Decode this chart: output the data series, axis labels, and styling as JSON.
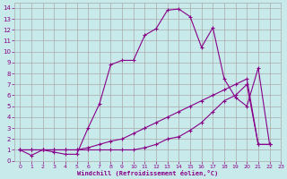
{
  "background_color": "#c8eaea",
  "grid_color": "#aaaaaa",
  "line_color": "#880088",
  "xlabel": "Windchill (Refroidissement éolien,°C)",
  "xlim": [
    -0.5,
    23
  ],
  "ylim": [
    0,
    14.5
  ],
  "xticks": [
    0,
    1,
    2,
    3,
    4,
    5,
    6,
    7,
    8,
    9,
    10,
    11,
    12,
    13,
    14,
    15,
    16,
    17,
    18,
    19,
    20,
    21,
    22,
    23
  ],
  "yticks": [
    0,
    1,
    2,
    3,
    4,
    5,
    6,
    7,
    8,
    9,
    10,
    11,
    12,
    13,
    14
  ],
  "curve1_x": [
    0,
    1,
    2,
    3,
    4,
    5,
    6,
    7,
    8,
    9,
    10,
    11,
    12,
    13,
    14,
    15,
    16,
    17,
    18,
    19,
    20,
    21,
    22
  ],
  "curve1_y": [
    1,
    0.5,
    1,
    0.8,
    0.6,
    0.6,
    3.0,
    5.2,
    8.8,
    9.2,
    9.2,
    11.5,
    12.1,
    13.8,
    13.9,
    13.2,
    10.4,
    12.2,
    7.5,
    5.8,
    5.0,
    8.5,
    1.5
  ],
  "curve2_x": [
    0,
    1,
    2,
    3,
    4,
    5,
    6,
    7,
    8,
    9,
    10,
    11,
    12,
    13,
    14,
    15,
    16,
    17,
    18,
    19,
    20,
    21,
    22
  ],
  "curve2_y": [
    1,
    1,
    1,
    1,
    1,
    1,
    1,
    1,
    1,
    1,
    1.0,
    1.2,
    1.5,
    2.0,
    2.2,
    2.8,
    3.5,
    4.5,
    5.5,
    6.0,
    7.0,
    1.5,
    1.5
  ],
  "curve3_x": [
    0,
    1,
    2,
    3,
    4,
    5,
    6,
    7,
    8,
    9,
    10,
    11,
    12,
    13,
    14,
    15,
    16,
    17,
    18,
    19,
    20,
    21,
    22
  ],
  "curve3_y": [
    1,
    1,
    1,
    1,
    1,
    1,
    1.2,
    1.5,
    1.8,
    2.0,
    2.5,
    3.0,
    3.5,
    4.0,
    4.5,
    5.0,
    5.5,
    6.0,
    6.5,
    7.0,
    7.5,
    1.5,
    1.5
  ]
}
